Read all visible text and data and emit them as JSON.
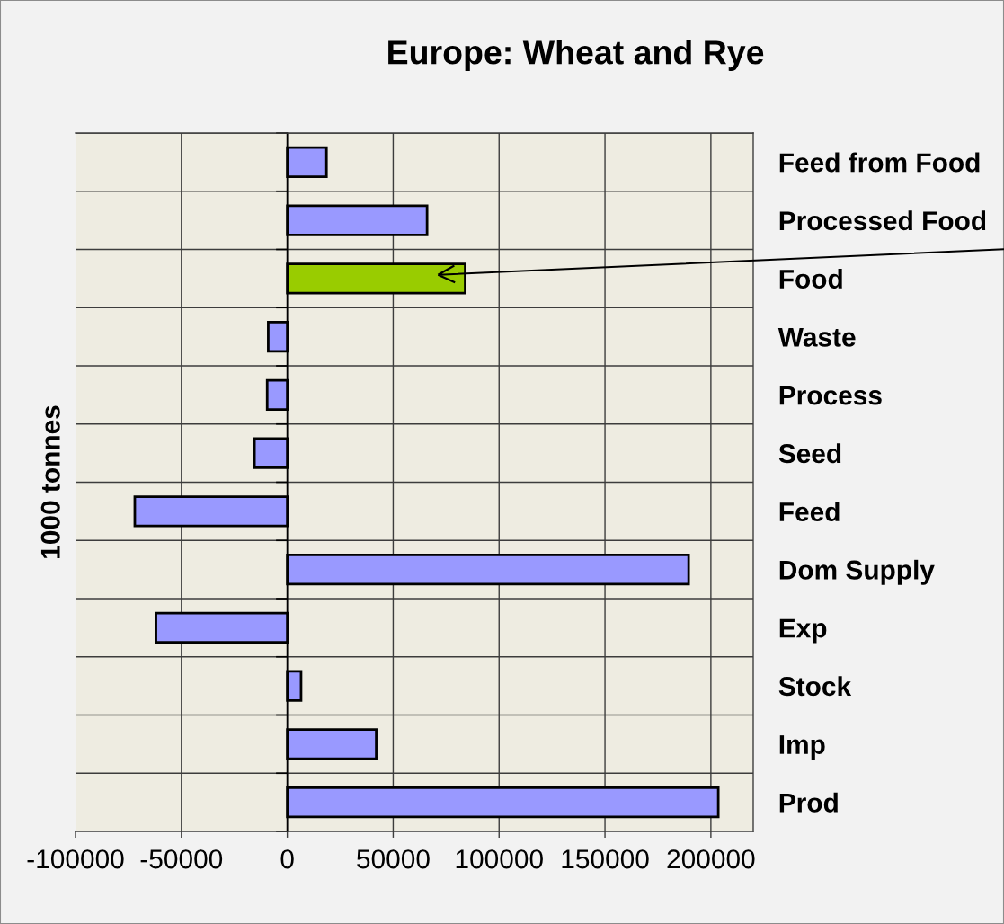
{
  "chart_data": {
    "type": "bar",
    "orientation": "horizontal",
    "title": "Europe: Wheat and Rye",
    "ylabel": "1000 tonnes",
    "categories": [
      "Feed from Food",
      "Processed Food",
      "Food",
      "Waste",
      "Process",
      "Seed",
      "Feed",
      "Dom Supply",
      "Exp",
      "Stock",
      "Imp",
      "Prod"
    ],
    "values": [
      18500,
      66000,
      84000,
      -9000,
      -9500,
      -15500,
      -72000,
      189500,
      -62000,
      6500,
      42000,
      203500
    ],
    "colors": [
      "#9999ff",
      "#9999ff",
      "#99cc00",
      "#9999ff",
      "#9999ff",
      "#9999ff",
      "#9999ff",
      "#9999ff",
      "#9999ff",
      "#9999ff",
      "#9999ff",
      "#9999ff"
    ],
    "xlim": [
      -100000,
      220000
    ],
    "xticks": [
      -100000,
      -50000,
      0,
      50000,
      100000,
      150000,
      200000
    ],
    "grid": true
  }
}
